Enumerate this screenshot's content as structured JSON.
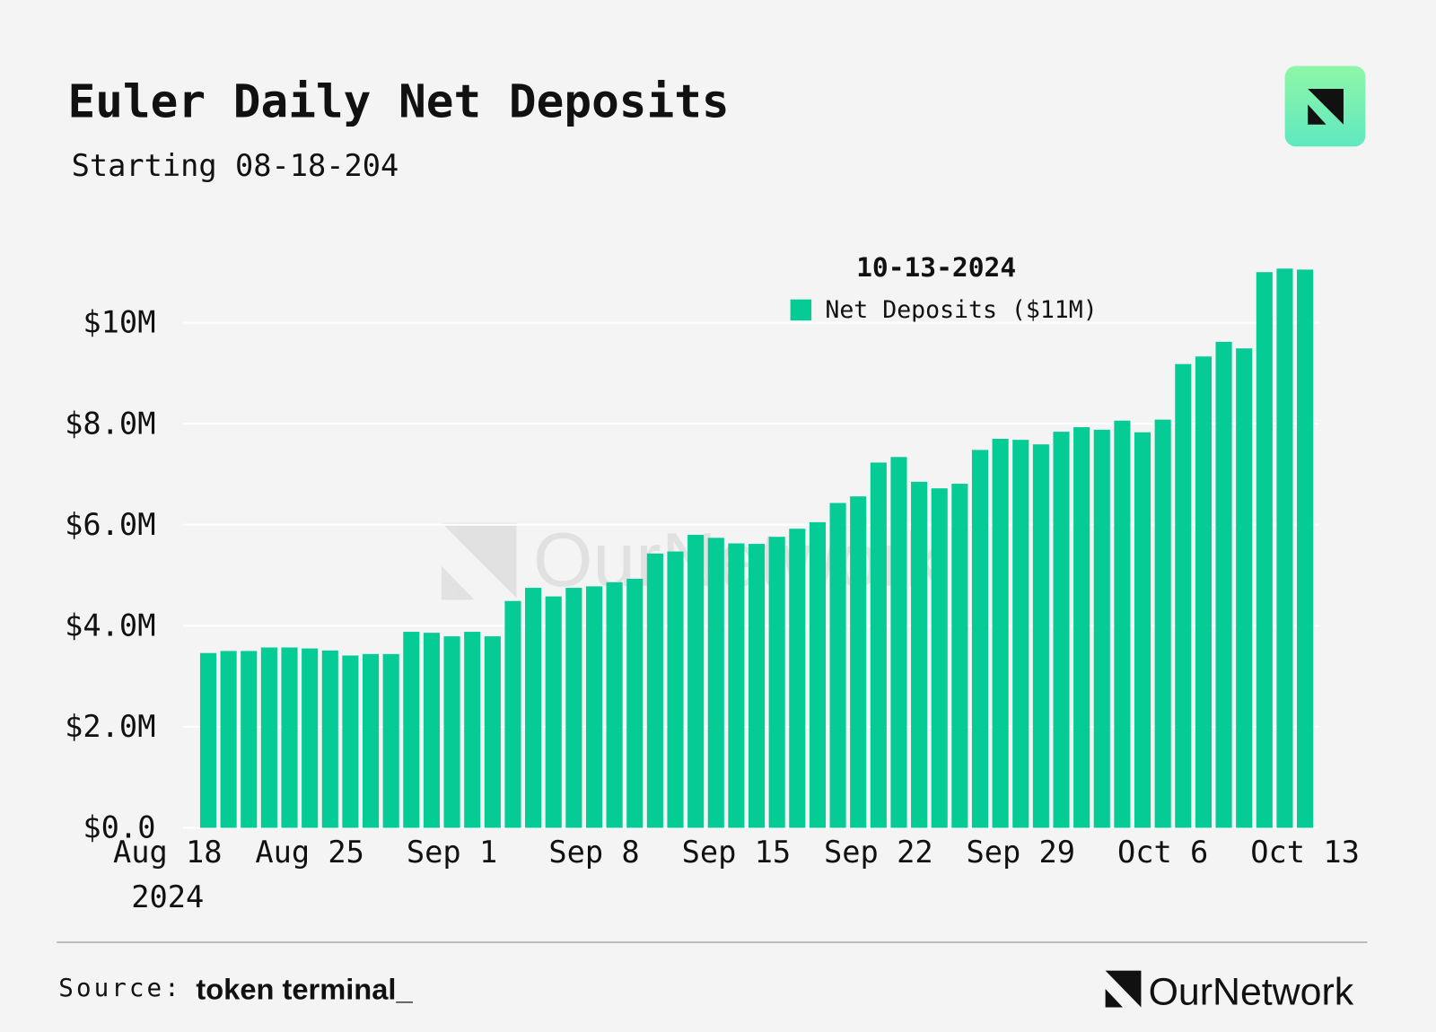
{
  "chart_data": {
    "type": "bar",
    "title": "Euler Daily Net Deposits",
    "subtitle": "Starting 08-18-204",
    "legend_title": "10-13-2024",
    "x": [
      "2024-08-20",
      "2024-08-21",
      "2024-08-22",
      "2024-08-23",
      "2024-08-24",
      "2024-08-25",
      "2024-08-26",
      "2024-08-27",
      "2024-08-28",
      "2024-08-29",
      "2024-08-30",
      "2024-08-31",
      "2024-09-01",
      "2024-09-02",
      "2024-09-03",
      "2024-09-04",
      "2024-09-05",
      "2024-09-06",
      "2024-09-07",
      "2024-09-08",
      "2024-09-09",
      "2024-09-10",
      "2024-09-11",
      "2024-09-12",
      "2024-09-13",
      "2024-09-14",
      "2024-09-15",
      "2024-09-16",
      "2024-09-17",
      "2024-09-18",
      "2024-09-19",
      "2024-09-20",
      "2024-09-21",
      "2024-09-22",
      "2024-09-23",
      "2024-09-24",
      "2024-09-25",
      "2024-09-26",
      "2024-09-27",
      "2024-09-28",
      "2024-09-29",
      "2024-09-30",
      "2024-10-01",
      "2024-10-02",
      "2024-10-03",
      "2024-10-04",
      "2024-10-05",
      "2024-10-06",
      "2024-10-07",
      "2024-10-08",
      "2024-10-09",
      "2024-10-10",
      "2024-10-11",
      "2024-10-12",
      "2024-10-13"
    ],
    "series": [
      {
        "name": "Net Deposits ($11M)",
        "color": "#05cc95",
        "values": [
          3460000,
          3500000,
          3500000,
          3570000,
          3570000,
          3550000,
          3510000,
          3410000,
          3440000,
          3440000,
          3880000,
          3860000,
          3790000,
          3880000,
          3790000,
          4490000,
          4750000,
          4580000,
          4750000,
          4780000,
          4860000,
          4930000,
          5430000,
          5470000,
          5800000,
          5740000,
          5630000,
          5620000,
          5760000,
          5920000,
          6050000,
          6430000,
          6560000,
          7230000,
          7340000,
          6850000,
          6720000,
          6810000,
          7480000,
          7700000,
          7680000,
          7590000,
          7840000,
          7930000,
          7880000,
          8060000,
          7830000,
          8080000,
          9180000,
          9330000,
          9620000,
          9490000,
          11000000,
          11070000,
          11050000
        ]
      }
    ],
    "xlim": [
      "2024-08-18",
      "2024-10-13"
    ],
    "xticks": [
      {
        "value": "2024-08-18",
        "label": "Aug 18"
      },
      {
        "value": "2024-08-25",
        "label": "Aug 25"
      },
      {
        "value": "2024-09-01",
        "label": "Sep 1"
      },
      {
        "value": "2024-09-08",
        "label": "Sep 8"
      },
      {
        "value": "2024-09-15",
        "label": "Sep 15"
      },
      {
        "value": "2024-09-22",
        "label": "Sep 22"
      },
      {
        "value": "2024-09-29",
        "label": "Sep 29"
      },
      {
        "value": "2024-10-06",
        "label": "Oct 6"
      },
      {
        "value": "2024-10-13",
        "label": "Oct 13"
      }
    ],
    "x_year_label": "2024",
    "ylim": [
      0,
      12000000
    ],
    "yticks": [
      {
        "value": 0,
        "label": "$0.0"
      },
      {
        "value": 2000000,
        "label": "$2.0M"
      },
      {
        "value": 4000000,
        "label": "$4.0M"
      },
      {
        "value": 6000000,
        "label": "$6.0M"
      },
      {
        "value": 8000000,
        "label": "$8.0M"
      },
      {
        "value": 10000000,
        "label": "$10M"
      }
    ],
    "grid": true,
    "watermark": "OurNetwork",
    "source_label": "Source:",
    "source_name": "token terminal_",
    "brand": "OurNetwork"
  }
}
